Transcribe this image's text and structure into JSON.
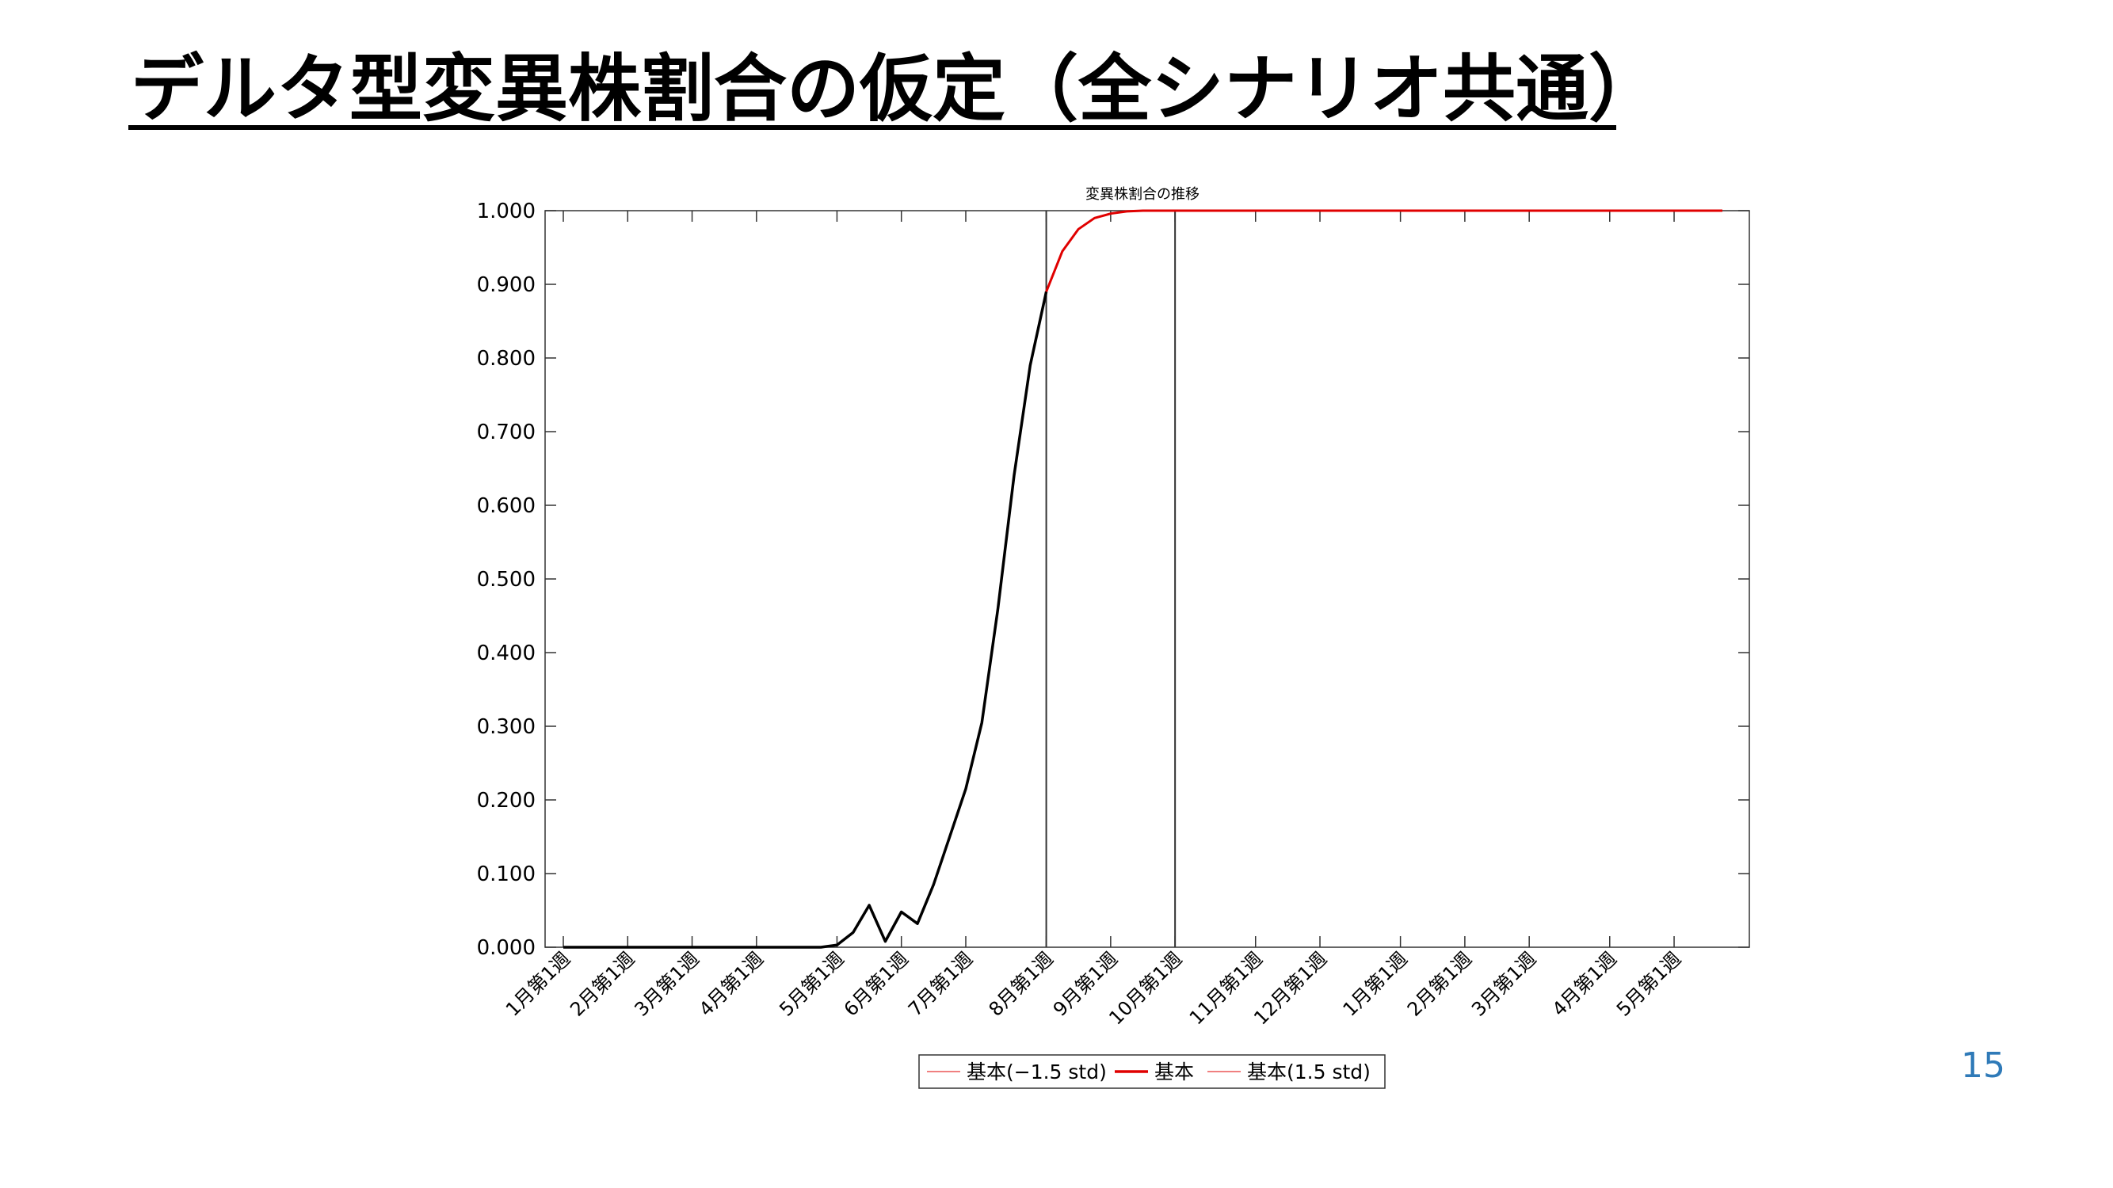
{
  "slide": {
    "title": "デルタ型変異株割合の仮定（全シナリオ共通）",
    "page_number": "15"
  },
  "colors": {
    "observed": "#000000",
    "projection": "#e00000",
    "band": "#f08080",
    "accent": "#2f7ab8"
  },
  "chart_data": {
    "type": "line",
    "title": "変異株割合の推移",
    "xlabel": "",
    "ylabel": "",
    "ylim": [
      0,
      1
    ],
    "yticks": [
      "0.000",
      "0.100",
      "0.200",
      "0.300",
      "0.400",
      "0.500",
      "0.600",
      "0.700",
      "0.800",
      "0.900",
      "1.000"
    ],
    "x_unit": "week",
    "xlim": [
      0,
      72
    ],
    "xticks": [
      {
        "label": "1月第1週",
        "week": 0
      },
      {
        "label": "2月第1週",
        "week": 4
      },
      {
        "label": "3月第1週",
        "week": 8
      },
      {
        "label": "4月第1週",
        "week": 12
      },
      {
        "label": "5月第1週",
        "week": 17
      },
      {
        "label": "6月第1週",
        "week": 21
      },
      {
        "label": "7月第1週",
        "week": 25
      },
      {
        "label": "8月第1週",
        "week": 30
      },
      {
        "label": "9月第1週",
        "week": 34
      },
      {
        "label": "10月第1週",
        "week": 38
      },
      {
        "label": "11月第1週",
        "week": 43
      },
      {
        "label": "12月第1週",
        "week": 47
      },
      {
        "label": "1月第1週",
        "week": 52
      },
      {
        "label": "2月第1週",
        "week": 56
      },
      {
        "label": "3月第1週",
        "week": 60
      },
      {
        "label": "4月第1週",
        "week": 65
      },
      {
        "label": "5月第1週",
        "week": 69
      }
    ],
    "vlines": [
      30,
      38
    ],
    "grid": false,
    "legend_position": "bottom-center",
    "legend": [
      "基本(−1.5 std)",
      "基本",
      "基本(1.5 std)"
    ],
    "series": [
      {
        "role": "observed",
        "x": [
          0,
          4,
          8,
          12,
          16,
          17,
          18,
          19,
          20,
          21,
          22,
          23,
          24,
          25,
          26,
          27,
          28,
          29,
          30
        ],
        "values": [
          0,
          0,
          0,
          0,
          0,
          0.003,
          0.02,
          0.057,
          0.008,
          0.048,
          0.032,
          0.085,
          0.15,
          0.215,
          0.305,
          0.46,
          0.64,
          0.79,
          0.89
        ]
      },
      {
        "name": "基本",
        "role": "projection",
        "x": [
          30,
          31,
          32,
          33,
          34,
          35,
          36,
          37,
          38,
          40,
          45,
          50,
          55,
          60,
          65,
          70,
          72
        ],
        "values": [
          0.89,
          0.945,
          0.975,
          0.99,
          0.996,
          0.999,
          1.0,
          1.0,
          1.0,
          1.0,
          1.0,
          1.0,
          1.0,
          1.0,
          1.0,
          1.0,
          1.0
        ]
      }
    ]
  }
}
